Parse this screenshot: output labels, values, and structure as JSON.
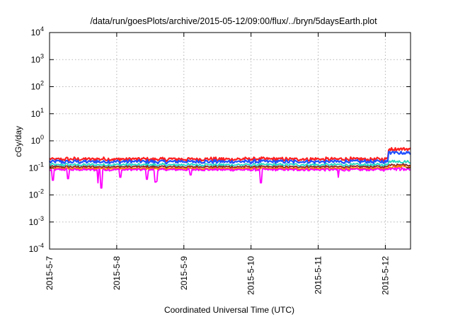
{
  "chart_data": {
    "type": "line",
    "title": "/data/run/goesPlots/archive/2015-05-12/09:00/flux/../bryn/5daysEarth.plot",
    "xlabel": "Coordinated Universal Time (UTC)",
    "ylabel": "cGy/day",
    "x_axis": {
      "type": "date",
      "range": [
        "2015-05-07T00:00",
        "2015-05-12T09:00"
      ],
      "ticks": [
        "2015-5-7",
        "2015-5-8",
        "2015-5-9",
        "2015-5-10",
        "2015-5-11",
        "2015-5-12"
      ]
    },
    "y_axis": {
      "scale": "log",
      "range": [
        0.0001,
        10000
      ],
      "ticks": [
        {
          "base": "10",
          "exp": "4"
        },
        {
          "base": "10",
          "exp": "3"
        },
        {
          "base": "10",
          "exp": "2"
        },
        {
          "base": "10",
          "exp": "1"
        },
        {
          "base": "10",
          "exp": "0"
        },
        {
          "base": "10",
          "exp": "-1"
        },
        {
          "base": "10",
          "exp": "-2"
        },
        {
          "base": "10",
          "exp": "-3"
        },
        {
          "base": "10",
          "exp": "-4"
        }
      ]
    },
    "grid": true,
    "legend": "none",
    "series": [
      {
        "color": "#ff1f1f",
        "level": 0.21,
        "jitter": 0.55,
        "end_level": 0.5,
        "dips": [],
        "values": [
          [
            0,
            0.18
          ],
          [
            0.25,
            0.22
          ],
          [
            0.5,
            0.23
          ],
          [
            1,
            0.22
          ],
          [
            1.5,
            0.22
          ],
          [
            2,
            0.22
          ],
          [
            2.5,
            0.22
          ],
          [
            3,
            0.22
          ],
          [
            3.5,
            0.22
          ],
          [
            4,
            0.22
          ],
          [
            4.5,
            0.22
          ],
          [
            5,
            0.24
          ],
          [
            5.05,
            0.6
          ],
          [
            5.25,
            0.5
          ],
          [
            5.375,
            0.45
          ]
        ]
      },
      {
        "color": "#1f4fff",
        "level": 0.17,
        "jitter": 0.55,
        "end_level": 0.36,
        "dips": [],
        "values": [
          [
            0,
            0.15
          ],
          [
            0.5,
            0.18
          ],
          [
            1,
            0.17
          ],
          [
            2,
            0.17
          ],
          [
            3,
            0.17
          ],
          [
            4,
            0.17
          ],
          [
            5,
            0.19
          ],
          [
            5.05,
            0.42
          ],
          [
            5.375,
            0.33
          ]
        ]
      },
      {
        "color": "#20d8c0",
        "level": 0.13,
        "jitter": 0.4,
        "end_level": 0.17,
        "dips": [],
        "values": [
          [
            0,
            0.12
          ],
          [
            1,
            0.13
          ],
          [
            2,
            0.13
          ],
          [
            3,
            0.13
          ],
          [
            4,
            0.13
          ],
          [
            5,
            0.13
          ],
          [
            5.375,
            0.17
          ]
        ]
      },
      {
        "color": "#8a2222",
        "level": 0.11,
        "jitter": 0.3,
        "end_level": 0.13,
        "dips": [],
        "values": [
          [
            0,
            0.1
          ],
          [
            1,
            0.11
          ],
          [
            2,
            0.11
          ],
          [
            3,
            0.11
          ],
          [
            4,
            0.11
          ],
          [
            5,
            0.11
          ],
          [
            5.375,
            0.13
          ]
        ]
      },
      {
        "color": "#ff7a00",
        "level": 0.095,
        "jitter": 0.25,
        "end_level": 0.11,
        "dips": [],
        "values": [
          [
            0,
            0.09
          ],
          [
            1,
            0.095
          ],
          [
            2,
            0.095
          ],
          [
            3,
            0.095
          ],
          [
            4,
            0.095
          ],
          [
            5,
            0.095
          ],
          [
            5.375,
            0.11
          ]
        ]
      },
      {
        "color": "#ff00ff",
        "level": 0.085,
        "jitter": 0.35,
        "end_level": 0.09,
        "dips": [
          [
            0.05,
            0.035
          ],
          [
            0.28,
            0.04
          ],
          [
            0.72,
            0.028
          ],
          [
            0.77,
            0.018
          ],
          [
            1.05,
            0.045
          ],
          [
            1.45,
            0.038
          ],
          [
            1.58,
            0.03
          ],
          [
            1.6,
            0.032
          ],
          [
            2.1,
            0.055
          ],
          [
            3.15,
            0.028
          ],
          [
            4.3,
            0.045
          ]
        ],
        "values": [
          [
            0,
            0.08
          ],
          [
            1,
            0.085
          ],
          [
            2,
            0.085
          ],
          [
            3,
            0.085
          ],
          [
            4,
            0.085
          ],
          [
            5,
            0.085
          ],
          [
            5.375,
            0.09
          ]
        ]
      }
    ]
  }
}
